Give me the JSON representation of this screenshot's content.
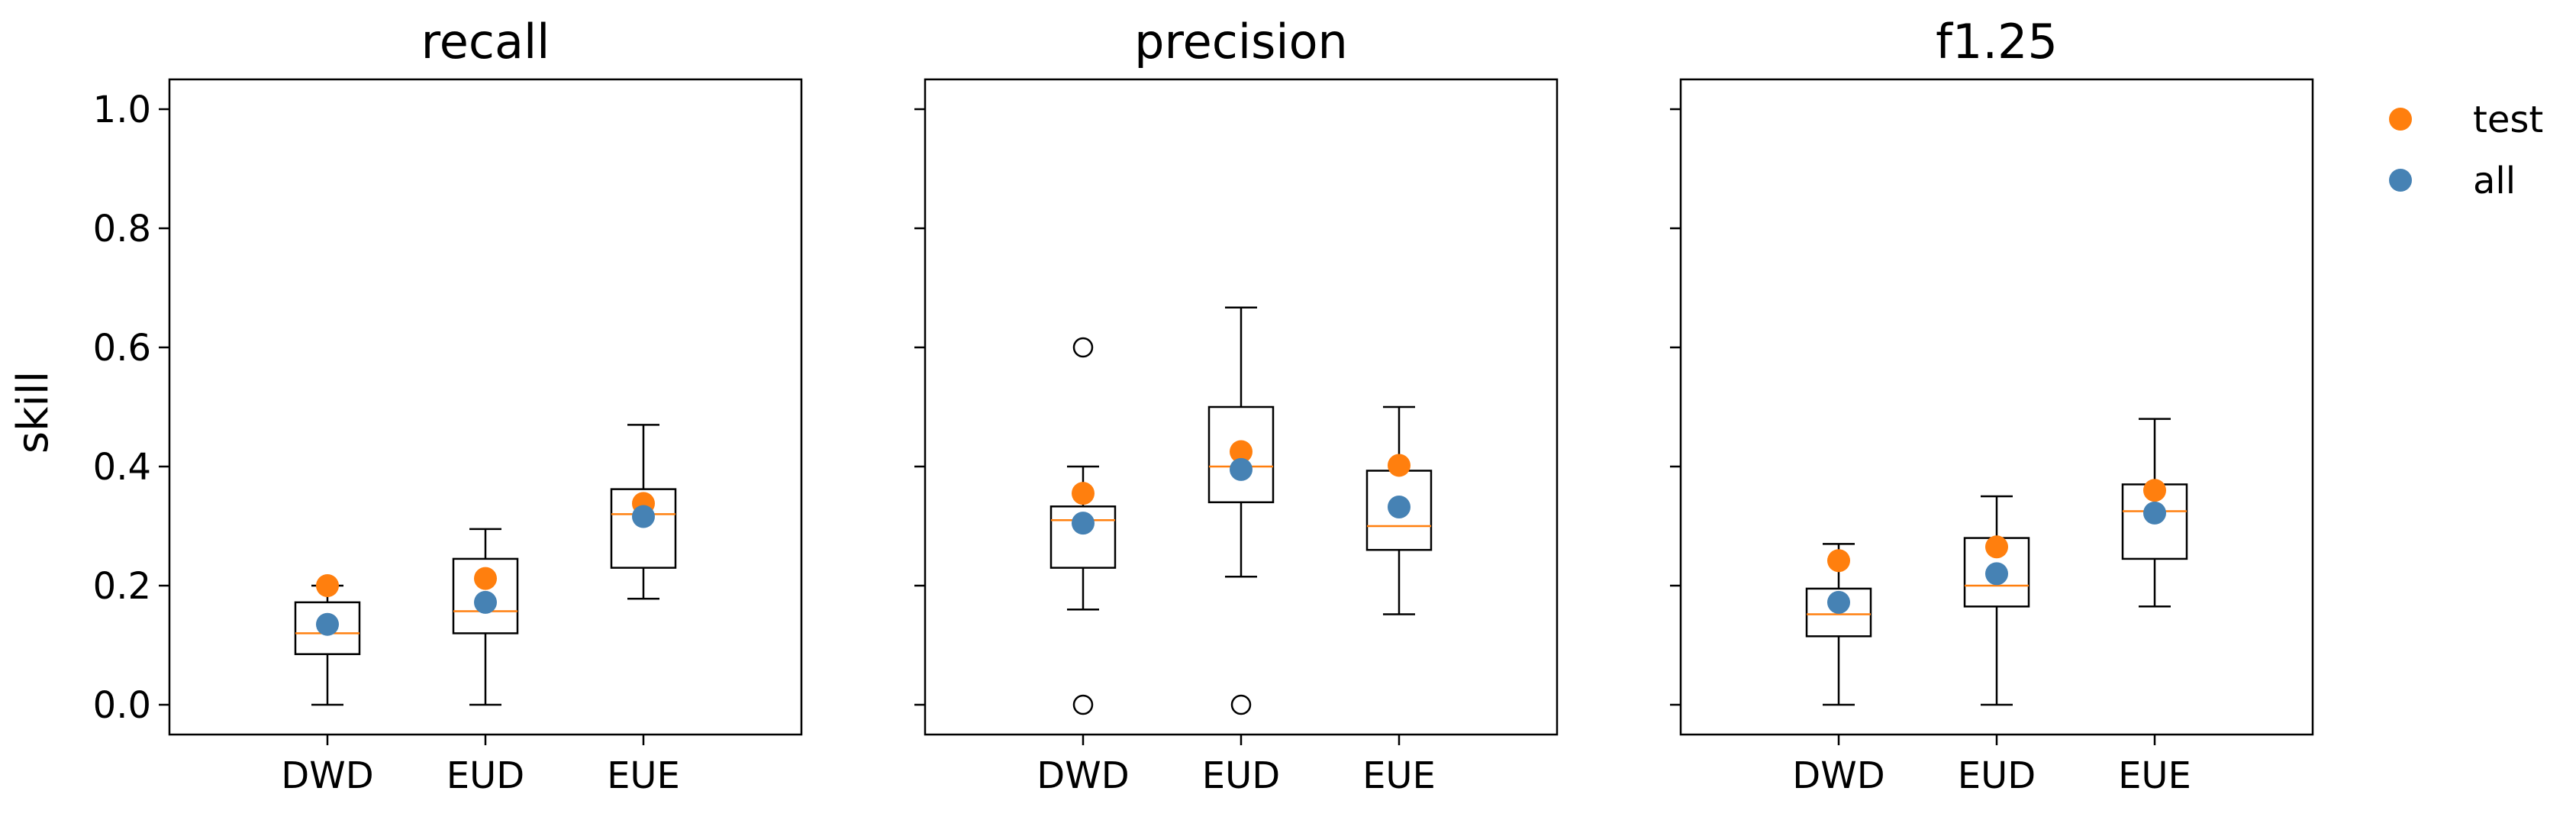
{
  "chart_data": {
    "type": "box",
    "shared_y_axis": true,
    "ylabel": "skill",
    "ylim": [
      -0.05,
      1.05
    ],
    "yticks": [
      0.0,
      0.2,
      0.4,
      0.6,
      0.8,
      1.0
    ],
    "ytick_labels": [
      "0.0",
      "0.2",
      "0.4",
      "0.6",
      "0.8",
      "1.0"
    ],
    "categories": [
      "DWD",
      "EUD",
      "EUE"
    ],
    "legend": {
      "placement": "upper-right-outside",
      "entries": [
        {
          "label": "test",
          "color": "#ff7f0e"
        },
        {
          "label": "all",
          "color": "#4682b4"
        }
      ]
    },
    "colors": {
      "box": "#000000",
      "median": "#ff7f0e",
      "test": "#ff7f0e",
      "all": "#4682b4"
    },
    "panels": [
      {
        "title": "recall",
        "boxes": [
          {
            "category": "DWD",
            "whisker_low": 0.0,
            "q1": 0.085,
            "median": 0.12,
            "q3": 0.172,
            "whisker_high": 0.2,
            "outliers": []
          },
          {
            "category": "EUD",
            "whisker_low": 0.0,
            "q1": 0.12,
            "median": 0.157,
            "q3": 0.245,
            "whisker_high": 0.295,
            "outliers": []
          },
          {
            "category": "EUE",
            "whisker_low": 0.178,
            "q1": 0.23,
            "median": 0.32,
            "q3": 0.362,
            "whisker_high": 0.47,
            "outliers": []
          }
        ],
        "points": {
          "test": [
            0.2,
            0.212,
            0.338
          ],
          "all": [
            0.135,
            0.172,
            0.316
          ]
        }
      },
      {
        "title": "precision",
        "boxes": [
          {
            "category": "DWD",
            "whisker_low": 0.16,
            "q1": 0.23,
            "median": 0.31,
            "q3": 0.333,
            "whisker_high": 0.4,
            "outliers": [
              0.6,
              0.0
            ]
          },
          {
            "category": "EUD",
            "whisker_low": 0.215,
            "q1": 0.34,
            "median": 0.4,
            "q3": 0.5,
            "whisker_high": 0.667,
            "outliers": [
              0.0
            ]
          },
          {
            "category": "EUE",
            "whisker_low": 0.152,
            "q1": 0.26,
            "median": 0.3,
            "q3": 0.393,
            "whisker_high": 0.5,
            "outliers": []
          }
        ],
        "points": {
          "test": [
            0.355,
            0.425,
            0.402
          ],
          "all": [
            0.305,
            0.395,
            0.332
          ]
        }
      },
      {
        "title": "f1.25",
        "boxes": [
          {
            "category": "DWD",
            "whisker_low": 0.0,
            "q1": 0.115,
            "median": 0.152,
            "q3": 0.195,
            "whisker_high": 0.27,
            "outliers": []
          },
          {
            "category": "EUD",
            "whisker_low": 0.0,
            "q1": 0.165,
            "median": 0.2,
            "q3": 0.28,
            "whisker_high": 0.35,
            "outliers": []
          },
          {
            "category": "EUE",
            "whisker_low": 0.165,
            "q1": 0.245,
            "median": 0.325,
            "q3": 0.37,
            "whisker_high": 0.48,
            "outliers": []
          }
        ],
        "points": {
          "test": [
            0.242,
            0.265,
            0.36
          ],
          "all": [
            0.172,
            0.22,
            0.322
          ]
        }
      }
    ]
  }
}
